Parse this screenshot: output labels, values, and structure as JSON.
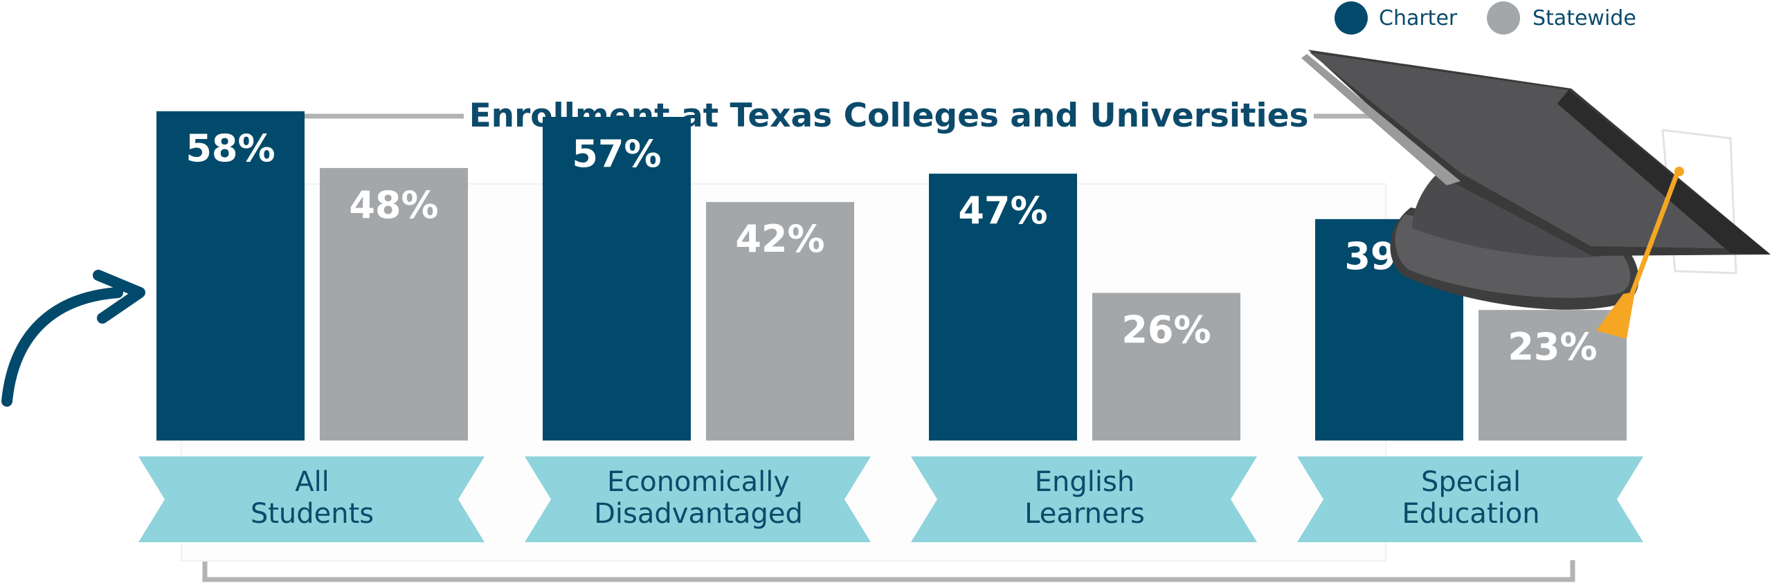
{
  "colors": {
    "charter": "#024a6b",
    "statewide": "#a4a7aa",
    "ribbon": "#8fd3dc",
    "text": "#0b4a6a",
    "bracket": "#b3b3b3"
  },
  "icons": [
    "graduation-cap-icon",
    "curved-arrow-icon"
  ],
  "chart_data": {
    "type": "bar",
    "title": "Enrollment at Texas Colleges and Universities",
    "categories": [
      [
        "All",
        "Students"
      ],
      [
        "Economically",
        "Disadvantaged"
      ],
      [
        "English",
        "Learners"
      ],
      [
        "Special",
        "Education"
      ]
    ],
    "series": [
      {
        "name": "Charter",
        "values": [
          58,
          57,
          47,
          39
        ],
        "labels": [
          "58%",
          "57%",
          "47%",
          "39%"
        ]
      },
      {
        "name": "Statewide",
        "values": [
          48,
          42,
          26,
          23
        ],
        "labels": [
          "48%",
          "42%",
          "26%",
          "23%"
        ]
      }
    ],
    "ylim": [
      0,
      100
    ],
    "legend": "top-right"
  }
}
